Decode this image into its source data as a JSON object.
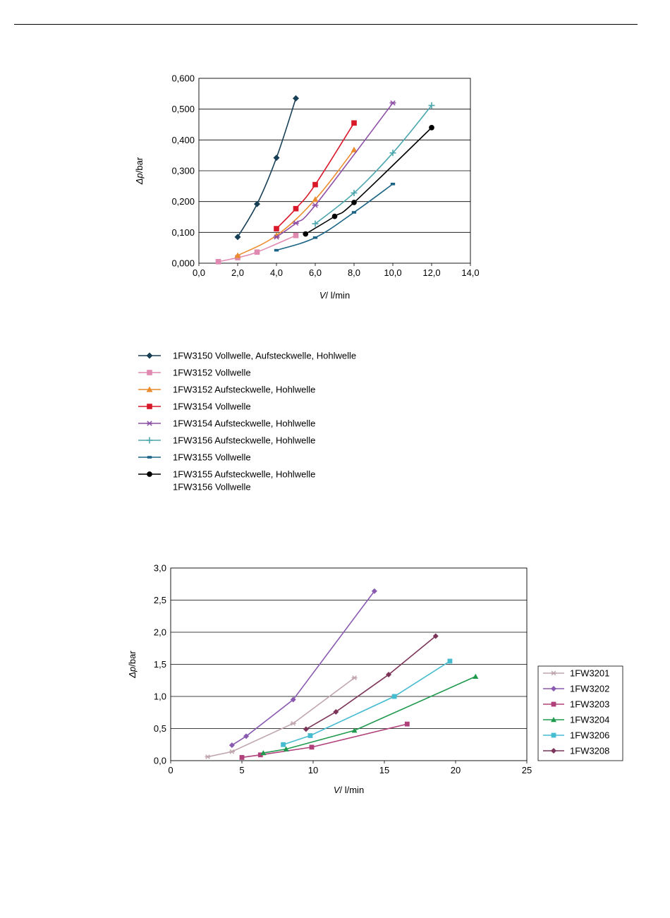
{
  "chart_data": [
    {
      "type": "line",
      "xlabel_symbol": "V",
      "xlabel_unit": "/ l/min",
      "ylabel_symbol": "Δp",
      "ylabel_unit": "/bar",
      "xlim": [
        0,
        14
      ],
      "ylim": [
        0,
        0.6
      ],
      "xticks": [
        "0,0",
        "2,0",
        "4,0",
        "6,0",
        "8,0",
        "10,0",
        "12,0",
        "14,0"
      ],
      "yticks": [
        "0,000",
        "0,100",
        "0,200",
        "0,300",
        "0,400",
        "0,500",
        "0,600"
      ],
      "grid": "horizontal",
      "legend": "below",
      "series": [
        {
          "name": "1FW3150 Vollwelle, Aufsteckwelle, Hohlwelle",
          "color": "#173f56",
          "marker": "diamond",
          "x": [
            2,
            3,
            4,
            5
          ],
          "y": [
            0.085,
            0.192,
            0.342,
            0.535
          ]
        },
        {
          "name": "1FW3152 Vollwelle",
          "color": "#e08ab2",
          "marker": "square",
          "x": [
            1,
            2,
            3,
            5
          ],
          "y": [
            0.005,
            0.018,
            0.036,
            0.09
          ]
        },
        {
          "name": "1FW3152 Aufsteckwelle, Hohlwelle",
          "color": "#eb8c2d",
          "marker": "triangle",
          "x": [
            2,
            4,
            6,
            8
          ],
          "y": [
            0.025,
            0.09,
            0.207,
            0.368
          ]
        },
        {
          "name": "1FW3154 Vollwelle",
          "color": "#d9182a",
          "marker": "square",
          "x": [
            4,
            5,
            6,
            8
          ],
          "y": [
            0.112,
            0.177,
            0.255,
            0.455
          ]
        },
        {
          "name": "1FW3154 Aufsteckwelle, Hohlwelle",
          "color": "#8e4ea6",
          "marker": "star",
          "x": [
            4,
            5,
            6,
            10
          ],
          "y": [
            0.085,
            0.13,
            0.188,
            0.52
          ]
        },
        {
          "name": "1FW3156 Aufsteckwelle, Hohlwelle",
          "color": "#4ba6ad",
          "marker": "plus",
          "x": [
            6,
            8,
            10,
            12
          ],
          "y": [
            0.128,
            0.228,
            0.358,
            0.512
          ]
        },
        {
          "name": "1FW3155 Vollwelle",
          "color": "#1b6486",
          "marker": "dash",
          "x": [
            4,
            6,
            8,
            10
          ],
          "y": [
            0.042,
            0.083,
            0.165,
            0.257
          ]
        },
        {
          "name": "1FW3155 Aufsteckwelle, Hohlwelle",
          "name2": "1FW3156 Vollwelle",
          "color": "#000000",
          "marker": "circle",
          "x": [
            5.5,
            7,
            8,
            12
          ],
          "y": [
            0.095,
            0.152,
            0.197,
            0.44
          ]
        }
      ]
    },
    {
      "type": "line",
      "xlabel_symbol": "V",
      "xlabel_unit": "/ l/min",
      "ylabel_symbol": "Δp",
      "ylabel_unit": "/bar",
      "xlim": [
        0,
        25
      ],
      "ylim": [
        0,
        3
      ],
      "xticks": [
        "0",
        "5",
        "10",
        "15",
        "20",
        "25"
      ],
      "yticks": [
        "0,0",
        "0,5",
        "1,0",
        "1,5",
        "2,0",
        "2,5",
        "3,0"
      ],
      "grid": "horizontal",
      "legend": "right",
      "series": [
        {
          "name": "1FW3201",
          "color": "#c0a7ad",
          "marker": "star",
          "x": [
            2.6,
            4.3,
            8.6,
            12.9
          ],
          "y": [
            0.06,
            0.14,
            0.58,
            1.29
          ]
        },
        {
          "name": "1FW3202",
          "color": "#8a5ab0",
          "marker": "diamond",
          "x": [
            4.3,
            5.3,
            8.6,
            14.3
          ],
          "y": [
            0.24,
            0.38,
            0.95,
            2.64
          ]
        },
        {
          "name": "1FW3203",
          "color": "#b0407a",
          "marker": "square",
          "x": [
            5.0,
            6.3,
            9.9,
            16.6
          ],
          "y": [
            0.05,
            0.09,
            0.21,
            0.57
          ]
        },
        {
          "name": "1FW3204",
          "color": "#1f9a4d",
          "marker": "triangle",
          "x": [
            6.5,
            8.1,
            12.9,
            21.4
          ],
          "y": [
            0.12,
            0.18,
            0.47,
            1.31
          ]
        },
        {
          "name": "1FW3206",
          "color": "#46bcd1",
          "marker": "square",
          "x": [
            7.9,
            9.8,
            15.7,
            19.6
          ],
          "y": [
            0.25,
            0.39,
            1.0,
            1.55
          ]
        },
        {
          "name": "1FW3208",
          "color": "#7c3558",
          "marker": "diamond",
          "x": [
            9.5,
            11.6,
            15.3,
            18.6
          ],
          "y": [
            0.49,
            0.76,
            1.34,
            1.94
          ]
        }
      ]
    }
  ]
}
